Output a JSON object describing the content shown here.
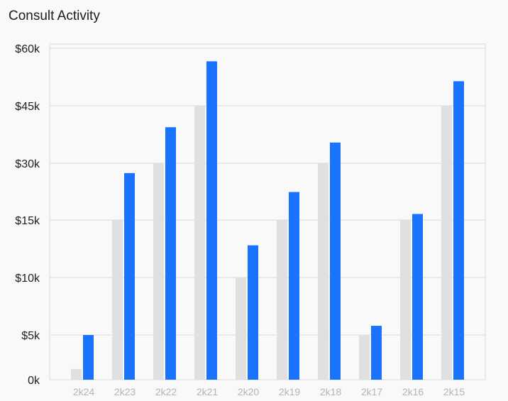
{
  "title": "Consult Activity",
  "chart_data": {
    "type": "bar",
    "title": "Consult Activity",
    "categories": [
      "2k24",
      "2k23",
      "2k22",
      "2k21",
      "2k20",
      "2k19",
      "2k18",
      "2k17",
      "2k16",
      "2k15"
    ],
    "series": [
      {
        "values": [
          1.2,
          15,
          30,
          45,
          10,
          15,
          30,
          5,
          15,
          45
        ]
      },
      {
        "values": [
          5,
          27.4,
          39.4,
          56.6,
          12.8,
          22.4,
          35.4,
          5.8,
          16.6,
          51.4
        ]
      }
    ],
    "y_ticks": [
      "0k",
      "$5k",
      "$10k",
      "$15k",
      "$30k",
      "$45k",
      "$60k"
    ],
    "y_tick_values": [
      0,
      5,
      10,
      15,
      30,
      45,
      60
    ],
    "y_scale": "piecewise: 0k–15k and 15k–60k segments share equal spacing per tick",
    "grid": true,
    "colors": {
      "series0": "#e0e0e0",
      "series1": "#1a73ff",
      "grid": "#d9d9d9"
    }
  }
}
